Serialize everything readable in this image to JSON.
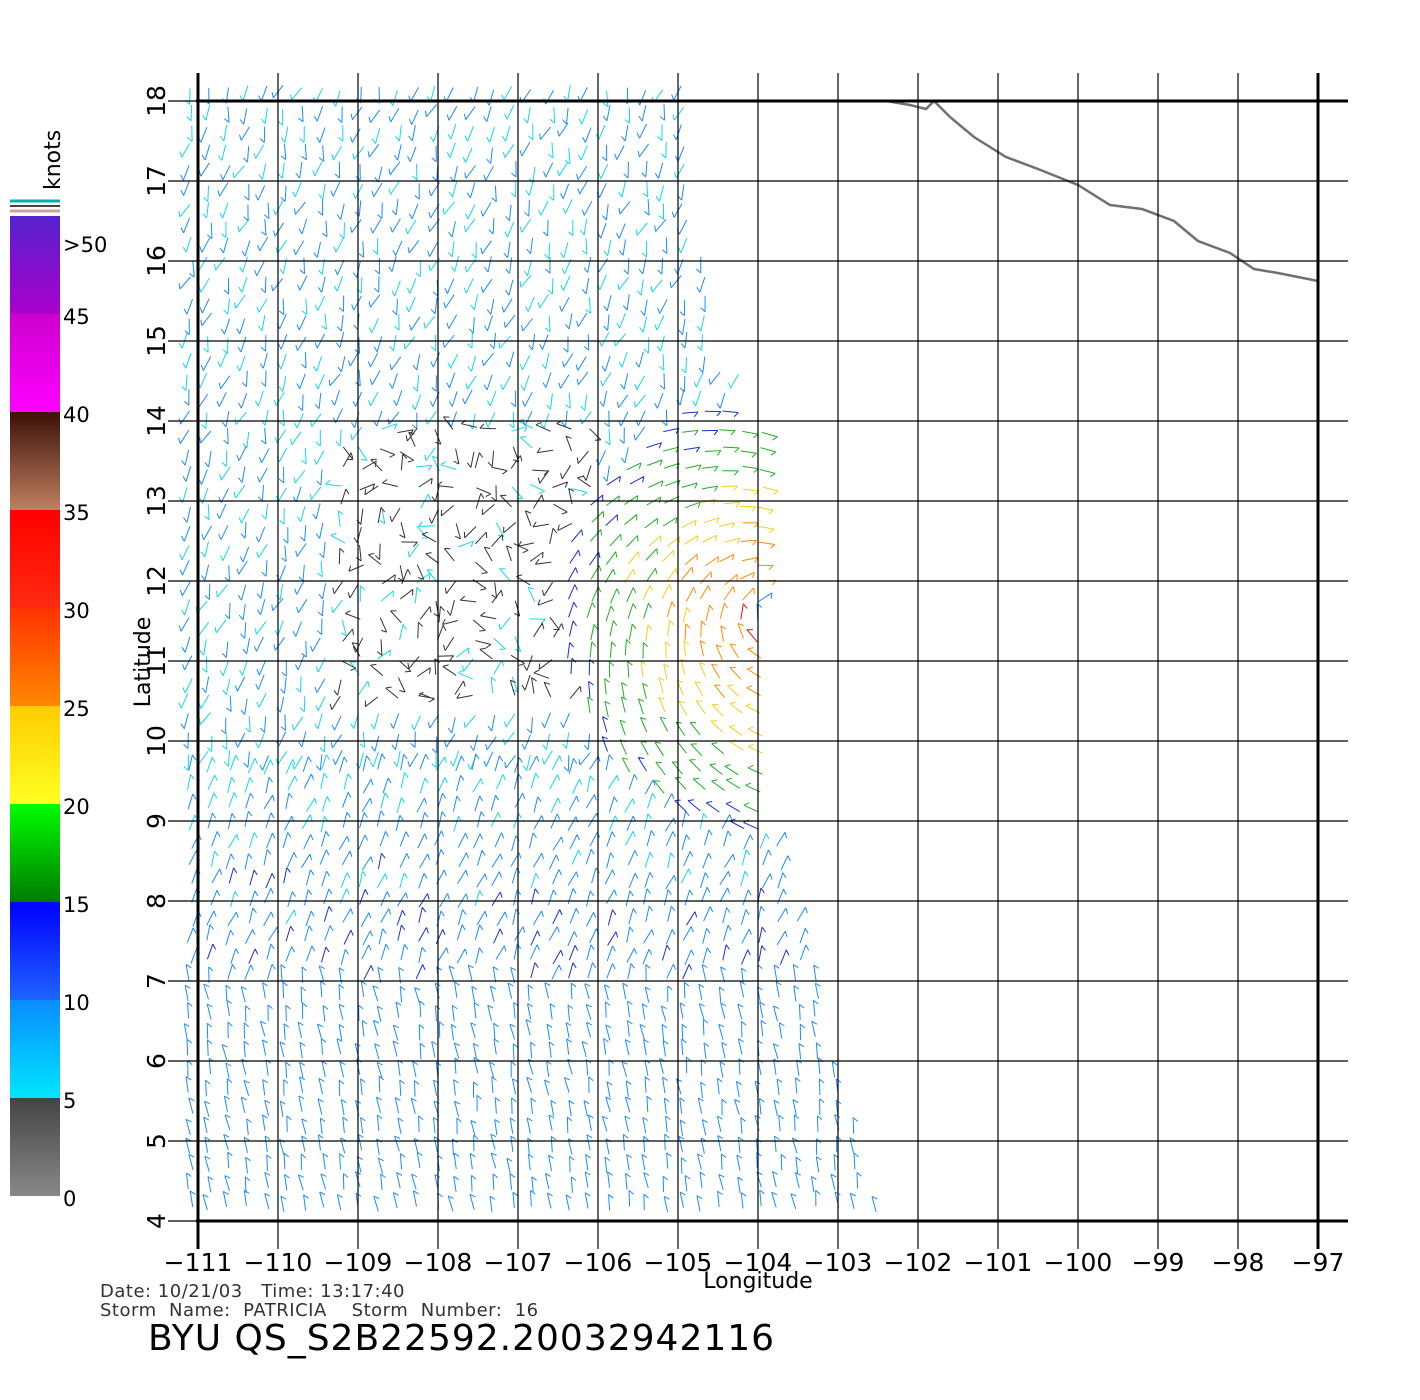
{
  "plot": {
    "x_axis_title": "Longitude",
    "y_axis_title": "Latitude",
    "x_ticks": [
      "-111",
      "-110",
      "-109",
      "-108",
      "-107",
      "-106",
      "-105",
      "-104",
      "-103",
      "-102",
      "-101",
      "-100",
      "-99",
      "-98",
      "-97"
    ],
    "y_ticks": [
      "4",
      "5",
      "6",
      "7",
      "8",
      "9",
      "10",
      "11",
      "12",
      "13",
      "14",
      "15",
      "16",
      "17",
      "18"
    ],
    "lon_range": [
      -111,
      -97
    ],
    "lat_range": [
      4,
      18
    ],
    "grid": true
  },
  "legend": {
    "unit": "knots",
    "labels": [
      ">50",
      "45",
      "40",
      "35",
      "30",
      "25",
      "20",
      "15",
      "10",
      "5",
      "0"
    ],
    "bands": [
      {
        "from": 0,
        "to": 5,
        "top": "#444444",
        "bottom": "#888888"
      },
      {
        "from": 5,
        "to": 10,
        "top": "#0a8cff",
        "bottom": "#00e6ff"
      },
      {
        "from": 10,
        "to": 15,
        "top": "#0000ff",
        "bottom": "#1e64ff"
      },
      {
        "from": 15,
        "to": 20,
        "top": "#00ff00",
        "bottom": "#007a00"
      },
      {
        "from": 20,
        "to": 25,
        "top": "#ffcc00",
        "bottom": "#ffff22"
      },
      {
        "from": 25,
        "to": 30,
        "top": "#ff3300",
        "bottom": "#ff8800"
      },
      {
        "from": 30,
        "to": 35,
        "top": "#ff0000",
        "bottom": "#ff2a10"
      },
      {
        "from": 35,
        "to": 40,
        "top": "#3a1008",
        "bottom": "#c08060"
      },
      {
        "from": 40,
        "to": 45,
        "top": "#cc00cc",
        "bottom": "#ff00ff"
      },
      {
        "from": 45,
        "to": 50,
        "top": "#5522cc",
        "bottom": "#aa00cc"
      }
    ]
  },
  "coastline": [
    [
      -102.4,
      18.0
    ],
    [
      -102.1,
      17.95
    ],
    [
      -101.9,
      17.9
    ],
    [
      -101.8,
      18.0
    ],
    [
      -101.6,
      17.8
    ],
    [
      -101.3,
      17.55
    ],
    [
      -100.9,
      17.3
    ],
    [
      -100.5,
      17.15
    ],
    [
      -100.0,
      16.95
    ],
    [
      -99.6,
      16.7
    ],
    [
      -99.2,
      16.65
    ],
    [
      -98.8,
      16.5
    ],
    [
      -98.5,
      16.25
    ],
    [
      -98.1,
      16.1
    ],
    [
      -97.8,
      15.9
    ],
    [
      -97.5,
      15.85
    ],
    [
      -97.0,
      15.75
    ]
  ],
  "info": {
    "date_line": "Date: 10/21/03   Time: 13:17:40",
    "storm_line": "Storm  Name:  PATRICIA    Storm  Number:  16"
  },
  "file_title": "BYU  QS_S2B22592.20032942116"
}
